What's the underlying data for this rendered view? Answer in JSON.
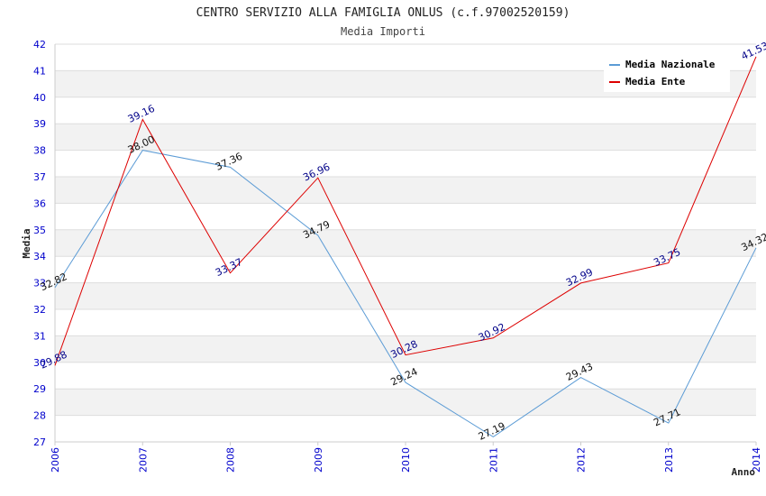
{
  "colors": {
    "band": "#f2f2f2",
    "grid": "#dddddd",
    "axis": "#cccccc",
    "tick_text": "#0000cc",
    "nazionale": "#5b9bd5",
    "ente": "#dd0000",
    "nazionale_label": "#111111",
    "ente_label": "#000088"
  },
  "chart_data": {
    "type": "line",
    "title": "CENTRO SERVIZIO ALLA FAMIGLIA ONLUS (c.f.97002520159)",
    "subtitle": "Media Importi",
    "xlabel": "Anno",
    "ylabel": "Media",
    "x": [
      "2006",
      "2007",
      "2008",
      "2009",
      "2010",
      "2011",
      "2012",
      "2013",
      "2014"
    ],
    "ylim": [
      27,
      42
    ],
    "yticks": [
      "27",
      "28",
      "29",
      "30",
      "31",
      "32",
      "33",
      "34",
      "35",
      "36",
      "37",
      "38",
      "39",
      "40",
      "41",
      "42"
    ],
    "grid": true,
    "legend_position": "top-right",
    "series": [
      {
        "name": "Media Nazionale",
        "values": [
          32.82,
          38.0,
          37.36,
          34.79,
          29.24,
          27.19,
          29.43,
          27.71,
          34.32
        ],
        "labels": [
          "32.82",
          "38.00",
          "37.36",
          "34.79",
          "29.24",
          "27.19",
          "29.43",
          "27.71",
          "34.32"
        ]
      },
      {
        "name": "Media Ente",
        "values": [
          29.88,
          39.16,
          33.37,
          36.96,
          30.28,
          30.92,
          32.99,
          33.75,
          41.53
        ],
        "labels": [
          "29.88",
          "39.16",
          "33.37",
          "36.96",
          "30.28",
          "30.92",
          "32.99",
          "33.75",
          "41.53"
        ]
      }
    ]
  }
}
